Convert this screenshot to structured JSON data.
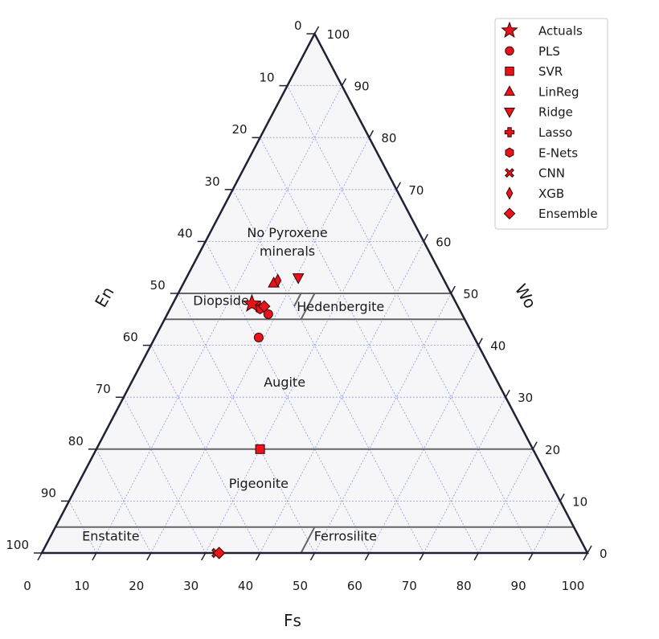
{
  "chart_data": {
    "type": "scatter",
    "subtype": "ternary",
    "axes": {
      "bottom": {
        "label": "Fs",
        "ticks": [
          "0",
          "10",
          "20",
          "30",
          "40",
          "50",
          "60",
          "70",
          "80",
          "90",
          "100"
        ]
      },
      "left": {
        "label": "En",
        "ticks": [
          "0",
          "10",
          "20",
          "30",
          "40",
          "50",
          "60",
          "70",
          "80",
          "90",
          "100"
        ]
      },
      "right": {
        "label": "Wo",
        "ticks": [
          "0",
          "10",
          "20",
          "30",
          "40",
          "50",
          "60",
          "70",
          "80",
          "90",
          "100"
        ]
      }
    },
    "grid": true,
    "boundaries": [
      {
        "wo": 50,
        "from_fs": 0,
        "to_fs": 50
      },
      {
        "wo": 45,
        "from_fs": 0,
        "to_fs": 55
      },
      {
        "wo": 20,
        "from_fs": 0,
        "to_fs": 80
      },
      {
        "wo": 5,
        "from_fs": 0,
        "to_fs": 95
      },
      {
        "wo_from": 50,
        "wo_to": 47.5,
        "fs": 22.5
      },
      {
        "wo_from": 50,
        "wo_to": 45,
        "fs": 25
      },
      {
        "wo_from": 5,
        "wo_to": 0,
        "fs": 47.5
      }
    ],
    "regions": [
      {
        "name": "No Pyroxene minerals",
        "lines": [
          "No Pyroxene",
          "minerals"
        ],
        "wo": 60,
        "fs": 15
      },
      {
        "name": "Diopside",
        "lines": [
          "Diopside"
        ],
        "wo": 48.7,
        "fs": 8.5
      },
      {
        "name": "Hedenbergite",
        "lines": [
          "Hedenbergite"
        ],
        "wo": 47.5,
        "fs": 31
      },
      {
        "name": "Augite",
        "lines": [
          "Augite"
        ],
        "wo": 33,
        "fs": 28
      },
      {
        "name": "Pigeonite",
        "lines": [
          "Pigeonite"
        ],
        "wo": 13.5,
        "fs": 33
      },
      {
        "name": "Enstatite",
        "lines": [
          "Enstatite"
        ],
        "wo": 3.3,
        "fs": 11
      },
      {
        "name": "Ferrosilite",
        "lines": [
          "Ferrosilite"
        ],
        "wo": 3.3,
        "fs": 54
      }
    ],
    "legend_position": "top-right",
    "series": [
      {
        "name": "Actuals",
        "marker": "star",
        "points": [
          {
            "fs": 14.5,
            "wo": 48
          }
        ]
      },
      {
        "name": "PLS",
        "marker": "circle",
        "points": [
          {
            "fs": 18.5,
            "wo": 46
          },
          {
            "fs": 19,
            "wo": 41.5
          }
        ]
      },
      {
        "name": "SVR",
        "marker": "square",
        "points": [
          {
            "fs": 30,
            "wo": 20
          }
        ]
      },
      {
        "name": "LinReg",
        "marker": "triangle-up",
        "points": [
          {
            "fs": 16.5,
            "wo": 52
          }
        ]
      },
      {
        "name": "Ridge",
        "marker": "triangle-down",
        "points": [
          {
            "fs": 20.5,
            "wo": 53
          }
        ]
      },
      {
        "name": "Lasso",
        "marker": "plus",
        "points": [
          {
            "fs": 16,
            "wo": 47.5
          }
        ]
      },
      {
        "name": "E-Nets",
        "marker": "hexagon",
        "points": [
          {
            "fs": 16.5,
            "wo": 47
          }
        ]
      },
      {
        "name": "CNN",
        "marker": "x",
        "points": [
          {
            "fs": 32,
            "wo": 0
          }
        ]
      },
      {
        "name": "XGB",
        "marker": "thin-diamond",
        "points": [
          {
            "fs": 17,
            "wo": 52.5
          }
        ]
      },
      {
        "name": "Ensemble",
        "marker": "diamond",
        "points": [
          {
            "fs": 17,
            "wo": 47.5
          },
          {
            "fs": 32.5,
            "wo": 0
          }
        ]
      }
    ]
  },
  "colors": {
    "marker_fill": "#e8141c",
    "marker_edge": "#3a0000",
    "triangle_fill": "#f6f6f8",
    "grid": "#8899e0",
    "boundary": "#666666",
    "outline": "#1f2235"
  }
}
